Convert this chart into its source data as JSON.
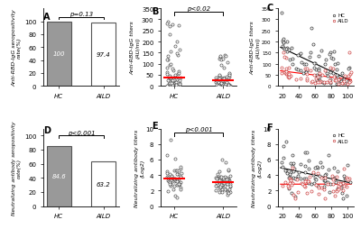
{
  "panel_A": {
    "categories": [
      "HC",
      "AILD"
    ],
    "values": [
      100,
      97.4
    ],
    "bar_colors": [
      "#999999",
      "#ffffff"
    ],
    "bar_edgecolors": [
      "#555555",
      "#555555"
    ],
    "ylabel": "Anti-RBD-IgG seropositivity\nrate(%)",
    "ylim": [
      0,
      120
    ],
    "yticks": [
      0,
      20,
      40,
      60,
      80,
      100
    ],
    "pvalue": "p=0.13",
    "label": "A"
  },
  "panel_B": {
    "ylabel": "Anti-RBD-IgG titers\n(AU/ml)",
    "ylim": [
      0,
      350
    ],
    "yticks": [
      0,
      50,
      100,
      150,
      200,
      250,
      300,
      350
    ],
    "pvalue": "p<0.02",
    "label": "B",
    "median_HC": 65,
    "median_AILD": 45
  },
  "panel_C": {
    "ylabel": "Anti-RBD-IgG titers\n(AU/ml)",
    "ylim": [
      0,
      350
    ],
    "label": "C",
    "legend": [
      "HC",
      "AILD"
    ]
  },
  "panel_D": {
    "categories": [
      "HC",
      "AILD"
    ],
    "values": [
      84.6,
      63.2
    ],
    "bar_colors": [
      "#999999",
      "#ffffff"
    ],
    "bar_edgecolors": [
      "#555555",
      "#555555"
    ],
    "ylabel": "Neutralizing antibody seropositivity\nrate(%)",
    "ylim": [
      0,
      110
    ],
    "yticks": [
      0,
      20,
      40,
      60,
      80,
      100
    ],
    "pvalue": "p<0.001",
    "label": "D"
  },
  "panel_E": {
    "ylabel": "Neutralizing antibody titers\n(Log2)",
    "ylim": [
      0,
      10
    ],
    "yticks": [
      0,
      2,
      4,
      6,
      8,
      10
    ],
    "pvalue": "p<0.001",
    "label": "E",
    "median_HC": 3.2,
    "median_AILD": 2.8
  },
  "panel_F": {
    "ylabel": "Neutralizing antibody titers\n(Log2)",
    "ylim": [
      0,
      10
    ],
    "label": "F",
    "legend": [
      "HC",
      "AILD"
    ]
  },
  "bg_color": "#ffffff"
}
